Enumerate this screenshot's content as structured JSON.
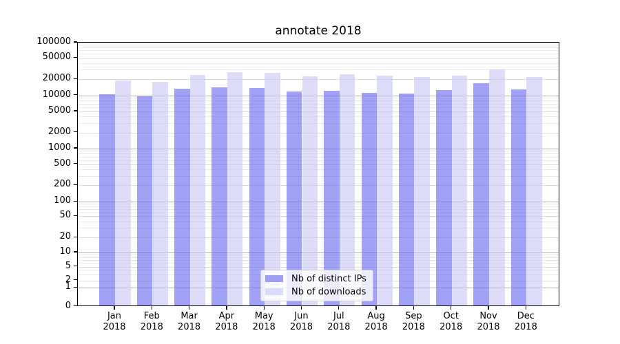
{
  "title": "annotate 2018",
  "chart_data": {
    "type": "bar",
    "title": "annotate 2018",
    "categories": [
      "Jan 2018",
      "Feb 2018",
      "Mar 2018",
      "Apr 2018",
      "May 2018",
      "Jun 2018",
      "Jul 2018",
      "Aug 2018",
      "Sep 2018",
      "Oct 2018",
      "Nov 2018",
      "Dec 2018"
    ],
    "x_axis": {
      "months": [
        "Jan",
        "Feb",
        "Mar",
        "Apr",
        "May",
        "Jun",
        "Jul",
        "Aug",
        "Sep",
        "Oct",
        "Nov",
        "Dec"
      ],
      "year_label": "2018"
    },
    "y_axis": {
      "scale": "symlog",
      "ylim": [
        0,
        100000
      ],
      "ticks": [
        0,
        1,
        2,
        5,
        10,
        20,
        50,
        100,
        200,
        500,
        1000,
        2000,
        5000,
        10000,
        20000,
        50000,
        100000
      ]
    },
    "series": [
      {
        "name": "Nb of distinct IPs",
        "color": "rgba(98,98,238,0.6)",
        "values": [
          10500,
          9700,
          13200,
          14200,
          13700,
          11800,
          12300,
          11000,
          10800,
          12700,
          16900,
          12900
        ]
      },
      {
        "name": "Nb of downloads",
        "color": "rgba(198,198,246,0.6)",
        "values": [
          18700,
          18100,
          24000,
          26800,
          26500,
          22700,
          25000,
          23400,
          22200,
          23200,
          30500,
          22200
        ]
      }
    ],
    "legend": {
      "entries": [
        "Nb of distinct IPs",
        "Nb of downloads"
      ],
      "position": "lower center"
    },
    "grid": true
  },
  "colors": {
    "background": "#ffffff",
    "spine": "#000000",
    "major_grid": "#b0b0b0",
    "labeled_grid": "#dcdcdc",
    "minor_grid": "#e9e9e9",
    "ips_bar": "rgba(98,98,238,0.6)",
    "downloads_bar": "rgba(198,198,246,0.6)"
  }
}
